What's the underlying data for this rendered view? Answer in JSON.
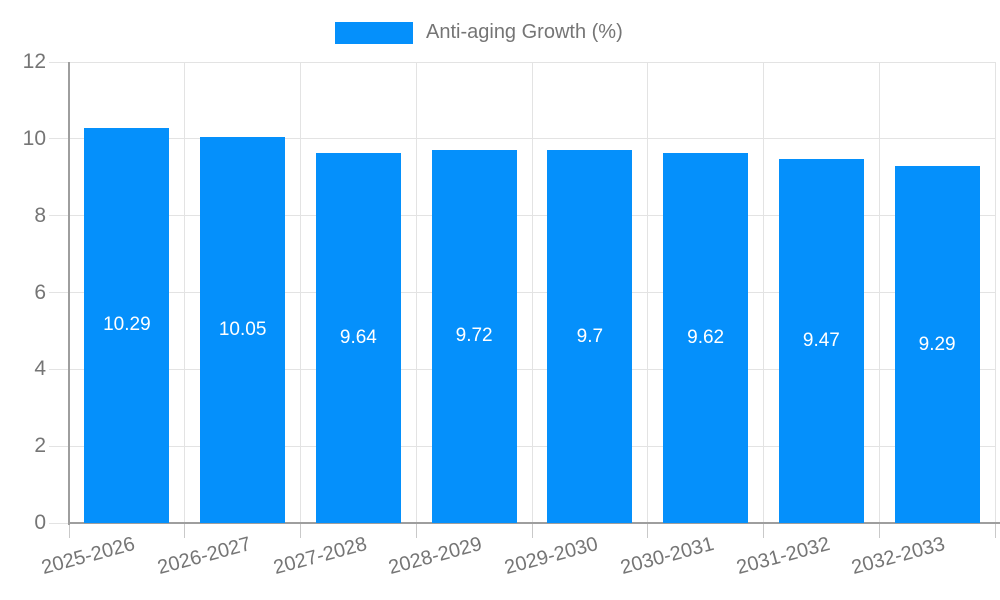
{
  "legend": {
    "label": "Anti-aging Growth (%)"
  },
  "chart_data": {
    "type": "bar",
    "title": "",
    "categories": [
      "2025-2026",
      "2026-2027",
      "2027-2028",
      "2028-2029",
      "2029-2030",
      "2030-2031",
      "2031-2032",
      "2032-2033"
    ],
    "series": [
      {
        "name": "Anti-aging Growth (%)",
        "values": [
          10.29,
          10.05,
          9.64,
          9.72,
          9.7,
          9.62,
          9.47,
          9.29
        ]
      }
    ],
    "value_labels": [
      "10.29",
      "10.05",
      "9.64",
      "9.72",
      "9.7",
      "9.62",
      "9.47",
      "9.29"
    ],
    "xlabel": "",
    "ylabel": "",
    "ylim": [
      0,
      12
    ],
    "yticks": [
      0,
      2,
      4,
      6,
      8,
      10,
      12
    ],
    "grid": true,
    "legend_position": "top",
    "colors": {
      "bar": "#0590FB",
      "axis": "#9E9E9E",
      "grid": "#E3E3E3",
      "tick": "#C9C9C9",
      "tick_label": "#757575",
      "value_label": "#FFFFFF"
    }
  }
}
